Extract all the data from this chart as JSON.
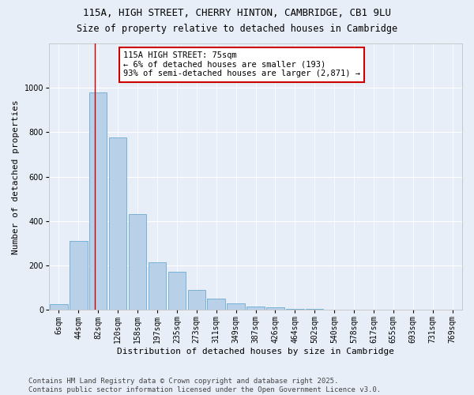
{
  "title1": "115A, HIGH STREET, CHERRY HINTON, CAMBRIDGE, CB1 9LU",
  "title2": "Size of property relative to detached houses in Cambridge",
  "xlabel": "Distribution of detached houses by size in Cambridge",
  "ylabel": "Number of detached properties",
  "categories": [
    "6sqm",
    "44sqm",
    "82sqm",
    "120sqm",
    "158sqm",
    "197sqm",
    "235sqm",
    "273sqm",
    "311sqm",
    "349sqm",
    "387sqm",
    "426sqm",
    "464sqm",
    "502sqm",
    "540sqm",
    "578sqm",
    "617sqm",
    "655sqm",
    "693sqm",
    "731sqm",
    "769sqm"
  ],
  "values": [
    25,
    310,
    980,
    775,
    430,
    215,
    170,
    90,
    50,
    30,
    15,
    10,
    5,
    3,
    1,
    1,
    0,
    0,
    0,
    0,
    0
  ],
  "bar_color": "#b8d0e8",
  "bar_edge_color": "#6aaad4",
  "vline_color": "#cc0000",
  "annotation_text": "115A HIGH STREET: 75sqm\n← 6% of detached houses are smaller (193)\n93% of semi-detached houses are larger (2,871) →",
  "annotation_box_color": "white",
  "annotation_box_edge": "#cc0000",
  "footer": "Contains HM Land Registry data © Crown copyright and database right 2025.\nContains public sector information licensed under the Open Government Licence v3.0.",
  "background_color": "#e8eef8",
  "plot_bg_color": "#e8eef8",
  "ylim": [
    0,
    1200
  ],
  "yticks": [
    0,
    200,
    400,
    600,
    800,
    1000
  ],
  "title_fontsize": 9,
  "subtitle_fontsize": 8.5,
  "axis_label_fontsize": 8,
  "tick_fontsize": 7,
  "footer_fontsize": 6.5
}
